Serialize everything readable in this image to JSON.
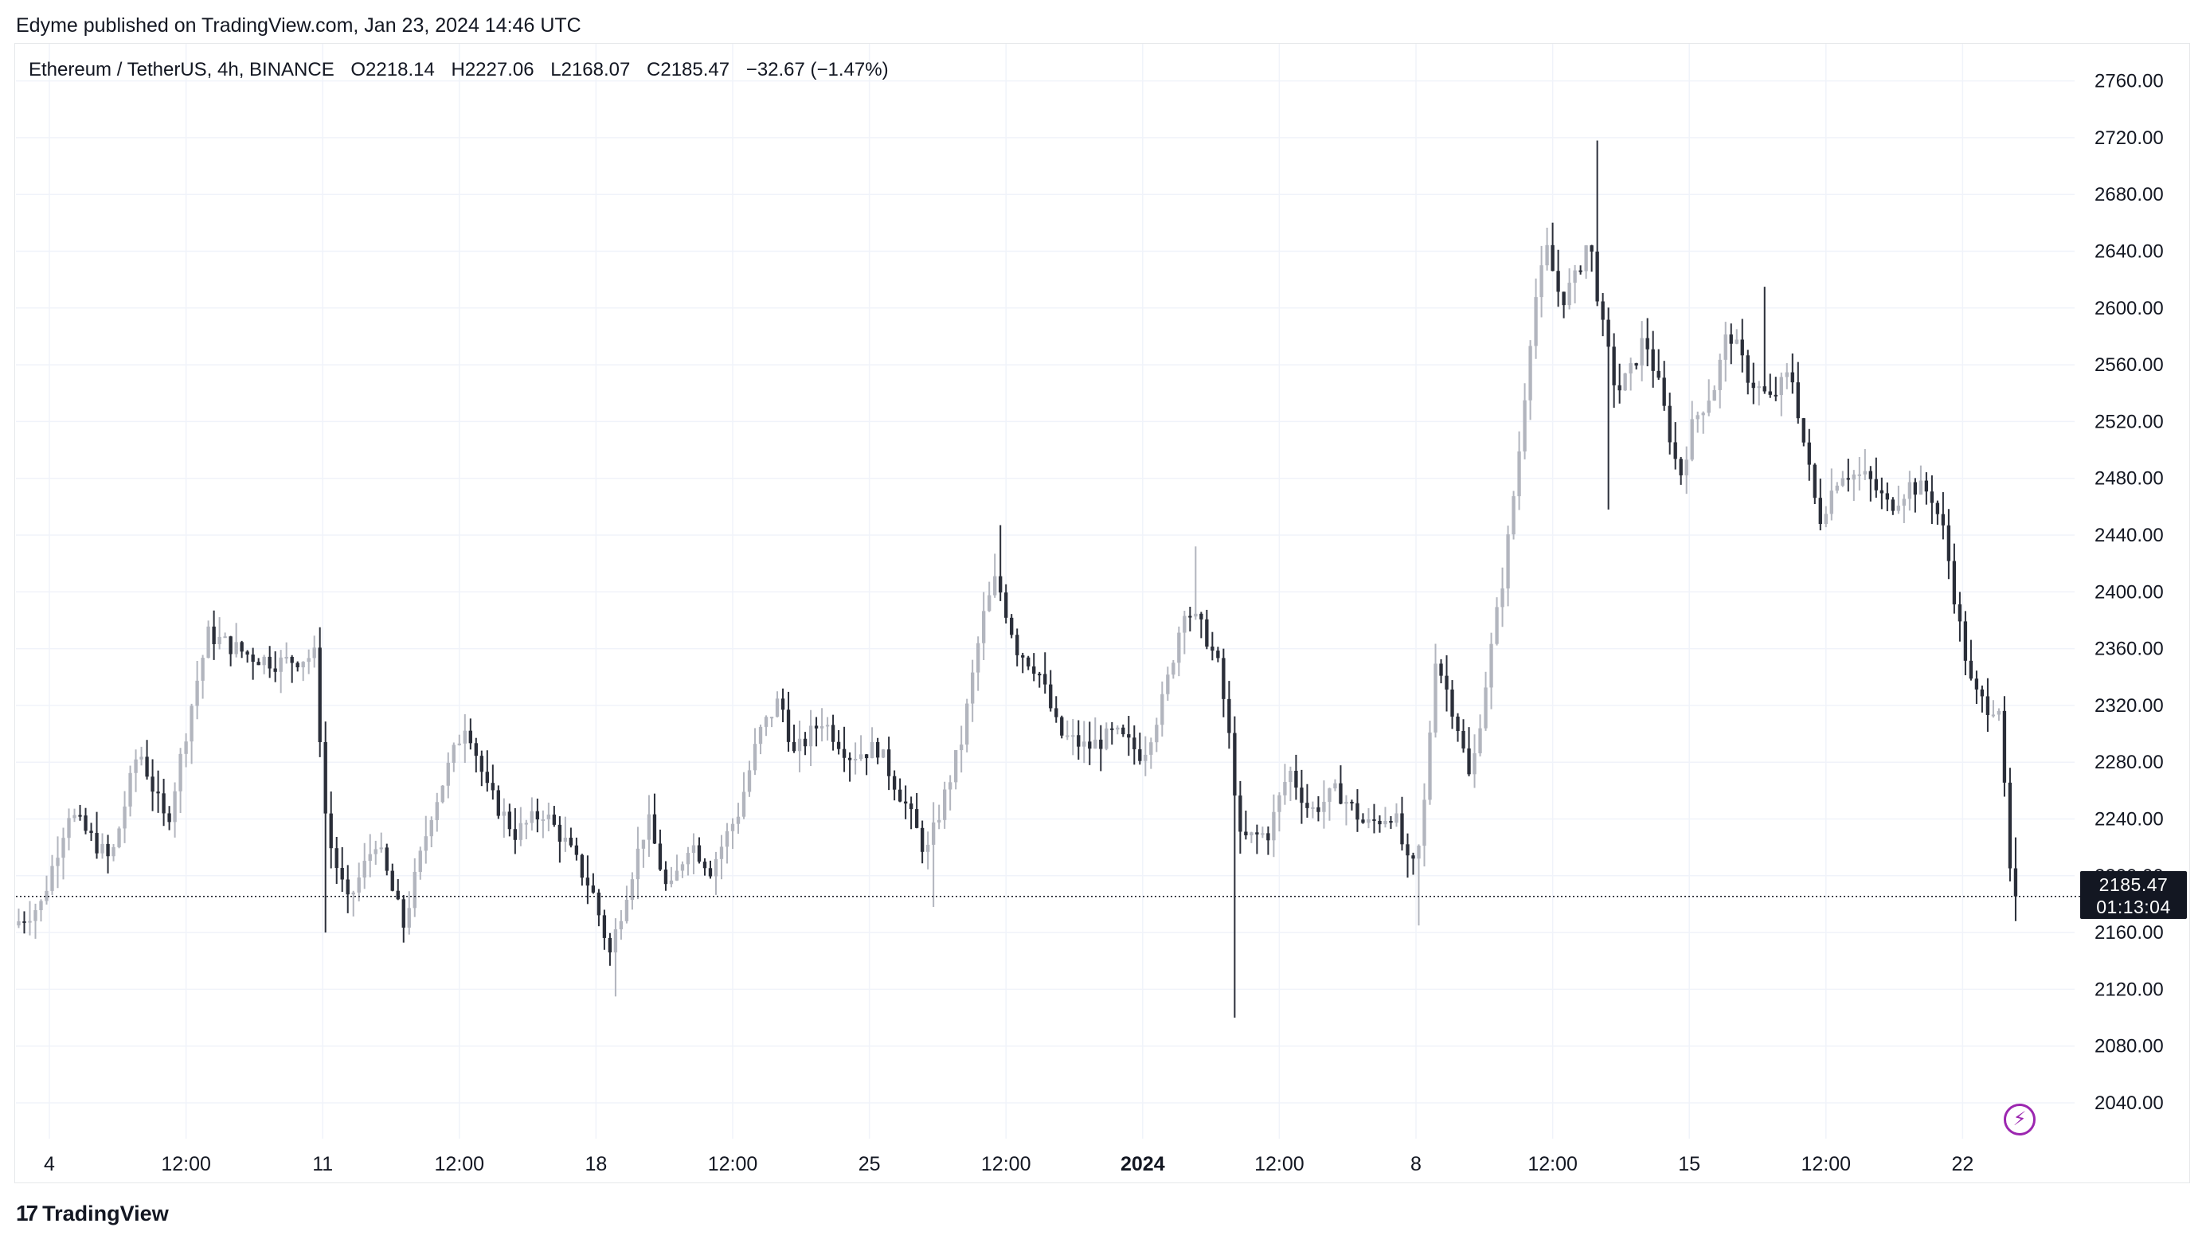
{
  "header": {
    "publisher": "Edyme published on TradingView.com, Jan 23, 2024 14:46 UTC"
  },
  "legend": {
    "symbol": "Ethereum / TetherUS, 4h, BINANCE",
    "open": "O2218.14",
    "high": "H2227.06",
    "low": "L2168.07",
    "close": "C2185.47",
    "change": "−32.67 (−1.47%)"
  },
  "last_price": {
    "value": "2185.47",
    "countdown": "01:13:04"
  },
  "footer": {
    "brand": "TradingView",
    "logo_mark": "17"
  },
  "colors": {
    "up": "#b2b5be",
    "down": "#2a2e39",
    "grid": "#f0f3fa",
    "text": "#131722",
    "accent": "#9c27b0"
  },
  "chart_data": {
    "type": "candlestick",
    "ylim": [
      2000,
      2780
    ],
    "xlim": [
      0,
      144
    ],
    "y_ticks": [
      2040,
      2080,
      2120,
      2160,
      2200,
      2240,
      2280,
      2320,
      2360,
      2400,
      2440,
      2480,
      2520,
      2560,
      2600,
      2640,
      2680,
      2720,
      2760
    ],
    "y_tick_labels": [
      "2040.00",
      "2080.00",
      "2120.00",
      "2160.00",
      "2200.00",
      "2240.00",
      "2280.00",
      "2320.00",
      "2360.00",
      "2400.00",
      "2440.00",
      "2480.00",
      "2520.00",
      "2560.00",
      "2600.00",
      "2640.00",
      "2680.00",
      "2720.00",
      "2760.00"
    ],
    "x_ticks": [
      {
        "x": 2.2,
        "label": "4",
        "bold": false
      },
      {
        "x": 12,
        "label": "12:00",
        "bold": false
      },
      {
        "x": 21.8,
        "label": "11",
        "bold": false
      },
      {
        "x": 31.6,
        "label": "12:00",
        "bold": false
      },
      {
        "x": 41.4,
        "label": "18",
        "bold": false
      },
      {
        "x": 51.2,
        "label": "12:00",
        "bold": false
      },
      {
        "x": 61,
        "label": "25",
        "bold": false
      },
      {
        "x": 70.8,
        "label": "12:00",
        "bold": false
      },
      {
        "x": 80.6,
        "label": "2024",
        "bold": true
      },
      {
        "x": 90.4,
        "label": "12:00",
        "bold": false
      },
      {
        "x": 100.2,
        "label": "8",
        "bold": false
      },
      {
        "x": 110,
        "label": "12:00",
        "bold": false
      },
      {
        "x": 119.8,
        "label": "15",
        "bold": false
      },
      {
        "x": 129.6,
        "label": "12:00",
        "bold": false
      },
      {
        "x": 139.4,
        "label": "22",
        "bold": false
      }
    ],
    "current_price": 2185.47,
    "anchors": [
      [
        0,
        2165
      ],
      [
        2,
        2180
      ],
      [
        4,
        2245
      ],
      [
        7,
        2210
      ],
      [
        9,
        2290
      ],
      [
        11,
        2235
      ],
      [
        13,
        2330
      ],
      [
        14,
        2370
      ],
      [
        17,
        2355
      ],
      [
        19,
        2350
      ],
      [
        21.6,
        2355
      ],
      [
        22.5,
        2230
      ],
      [
        24,
        2180
      ],
      [
        26,
        2225
      ],
      [
        28,
        2165
      ],
      [
        30,
        2245
      ],
      [
        32.5,
        2310
      ],
      [
        34,
        2260
      ],
      [
        36,
        2230
      ],
      [
        38,
        2245
      ],
      [
        39.5,
        2225
      ],
      [
        41.5,
        2190
      ],
      [
        42.8,
        2145
      ],
      [
        44,
        2190
      ],
      [
        45.5,
        2240
      ],
      [
        47,
        2185
      ],
      [
        48.5,
        2225
      ],
      [
        50,
        2205
      ],
      [
        52,
        2245
      ],
      [
        53.5,
        2300
      ],
      [
        55,
        2325
      ],
      [
        56,
        2285
      ],
      [
        58,
        2310
      ],
      [
        60,
        2285
      ],
      [
        62,
        2290
      ],
      [
        64,
        2250
      ],
      [
        65.5,
        2215
      ],
      [
        68,
        2295
      ],
      [
        69.5,
        2380
      ],
      [
        70.5,
        2410
      ],
      [
        72,
        2360
      ],
      [
        73.5,
        2345
      ],
      [
        75,
        2300
      ],
      [
        77,
        2290
      ],
      [
        79,
        2300
      ],
      [
        81,
        2285
      ],
      [
        82.5,
        2325
      ],
      [
        84,
        2390
      ],
      [
        85.5,
        2370
      ],
      [
        86.5,
        2345
      ],
      [
        87.3,
        2290
      ],
      [
        88,
        2225
      ],
      [
        90,
        2230
      ],
      [
        91.5,
        2275
      ],
      [
        93,
        2245
      ],
      [
        95,
        2260
      ],
      [
        97,
        2235
      ],
      [
        99,
        2245
      ],
      [
        100.2,
        2200
      ],
      [
        101,
        2225
      ],
      [
        102,
        2355
      ],
      [
        103.5,
        2310
      ],
      [
        104.5,
        2265
      ],
      [
        105.5,
        2330
      ],
      [
        107,
        2420
      ],
      [
        108,
        2500
      ],
      [
        109,
        2600
      ],
      [
        110,
        2640
      ],
      [
        111,
        2605
      ],
      [
        112,
        2620
      ],
      [
        113,
        2650
      ],
      [
        114,
        2585
      ],
      [
        115,
        2540
      ],
      [
        116,
        2555
      ],
      [
        117,
        2580
      ],
      [
        118,
        2545
      ],
      [
        119.5,
        2480
      ],
      [
        120.5,
        2520
      ],
      [
        122,
        2545
      ],
      [
        123,
        2585
      ],
      [
        124.5,
        2550
      ],
      [
        126,
        2535
      ],
      [
        127.5,
        2555
      ],
      [
        128.5,
        2500
      ],
      [
        129.5,
        2450
      ],
      [
        131,
        2485
      ],
      [
        133,
        2480
      ],
      [
        134.5,
        2460
      ],
      [
        136,
        2475
      ],
      [
        137.5,
        2470
      ],
      [
        138.5,
        2440
      ],
      [
        139.5,
        2380
      ],
      [
        140.5,
        2330
      ],
      [
        141.5,
        2320
      ],
      [
        142.5,
        2320
      ],
      [
        143,
        2218
      ],
      [
        143.4,
        2185.47
      ]
    ],
    "wick_spikes": [
      {
        "x": 21.8,
        "low": 2160
      },
      {
        "x": 42.8,
        "low": 2115
      },
      {
        "x": 65.5,
        "low": 2178
      },
      {
        "x": 87.3,
        "low": 2100
      },
      {
        "x": 100.2,
        "low": 2165
      },
      {
        "x": 113,
        "high": 2718
      },
      {
        "x": 114,
        "low": 2458
      },
      {
        "x": 70.5,
        "high": 2447
      },
      {
        "x": 84.5,
        "high": 2432
      },
      {
        "x": 125,
        "high": 2615
      },
      {
        "x": 143.4,
        "low": 2168.07
      }
    ]
  }
}
